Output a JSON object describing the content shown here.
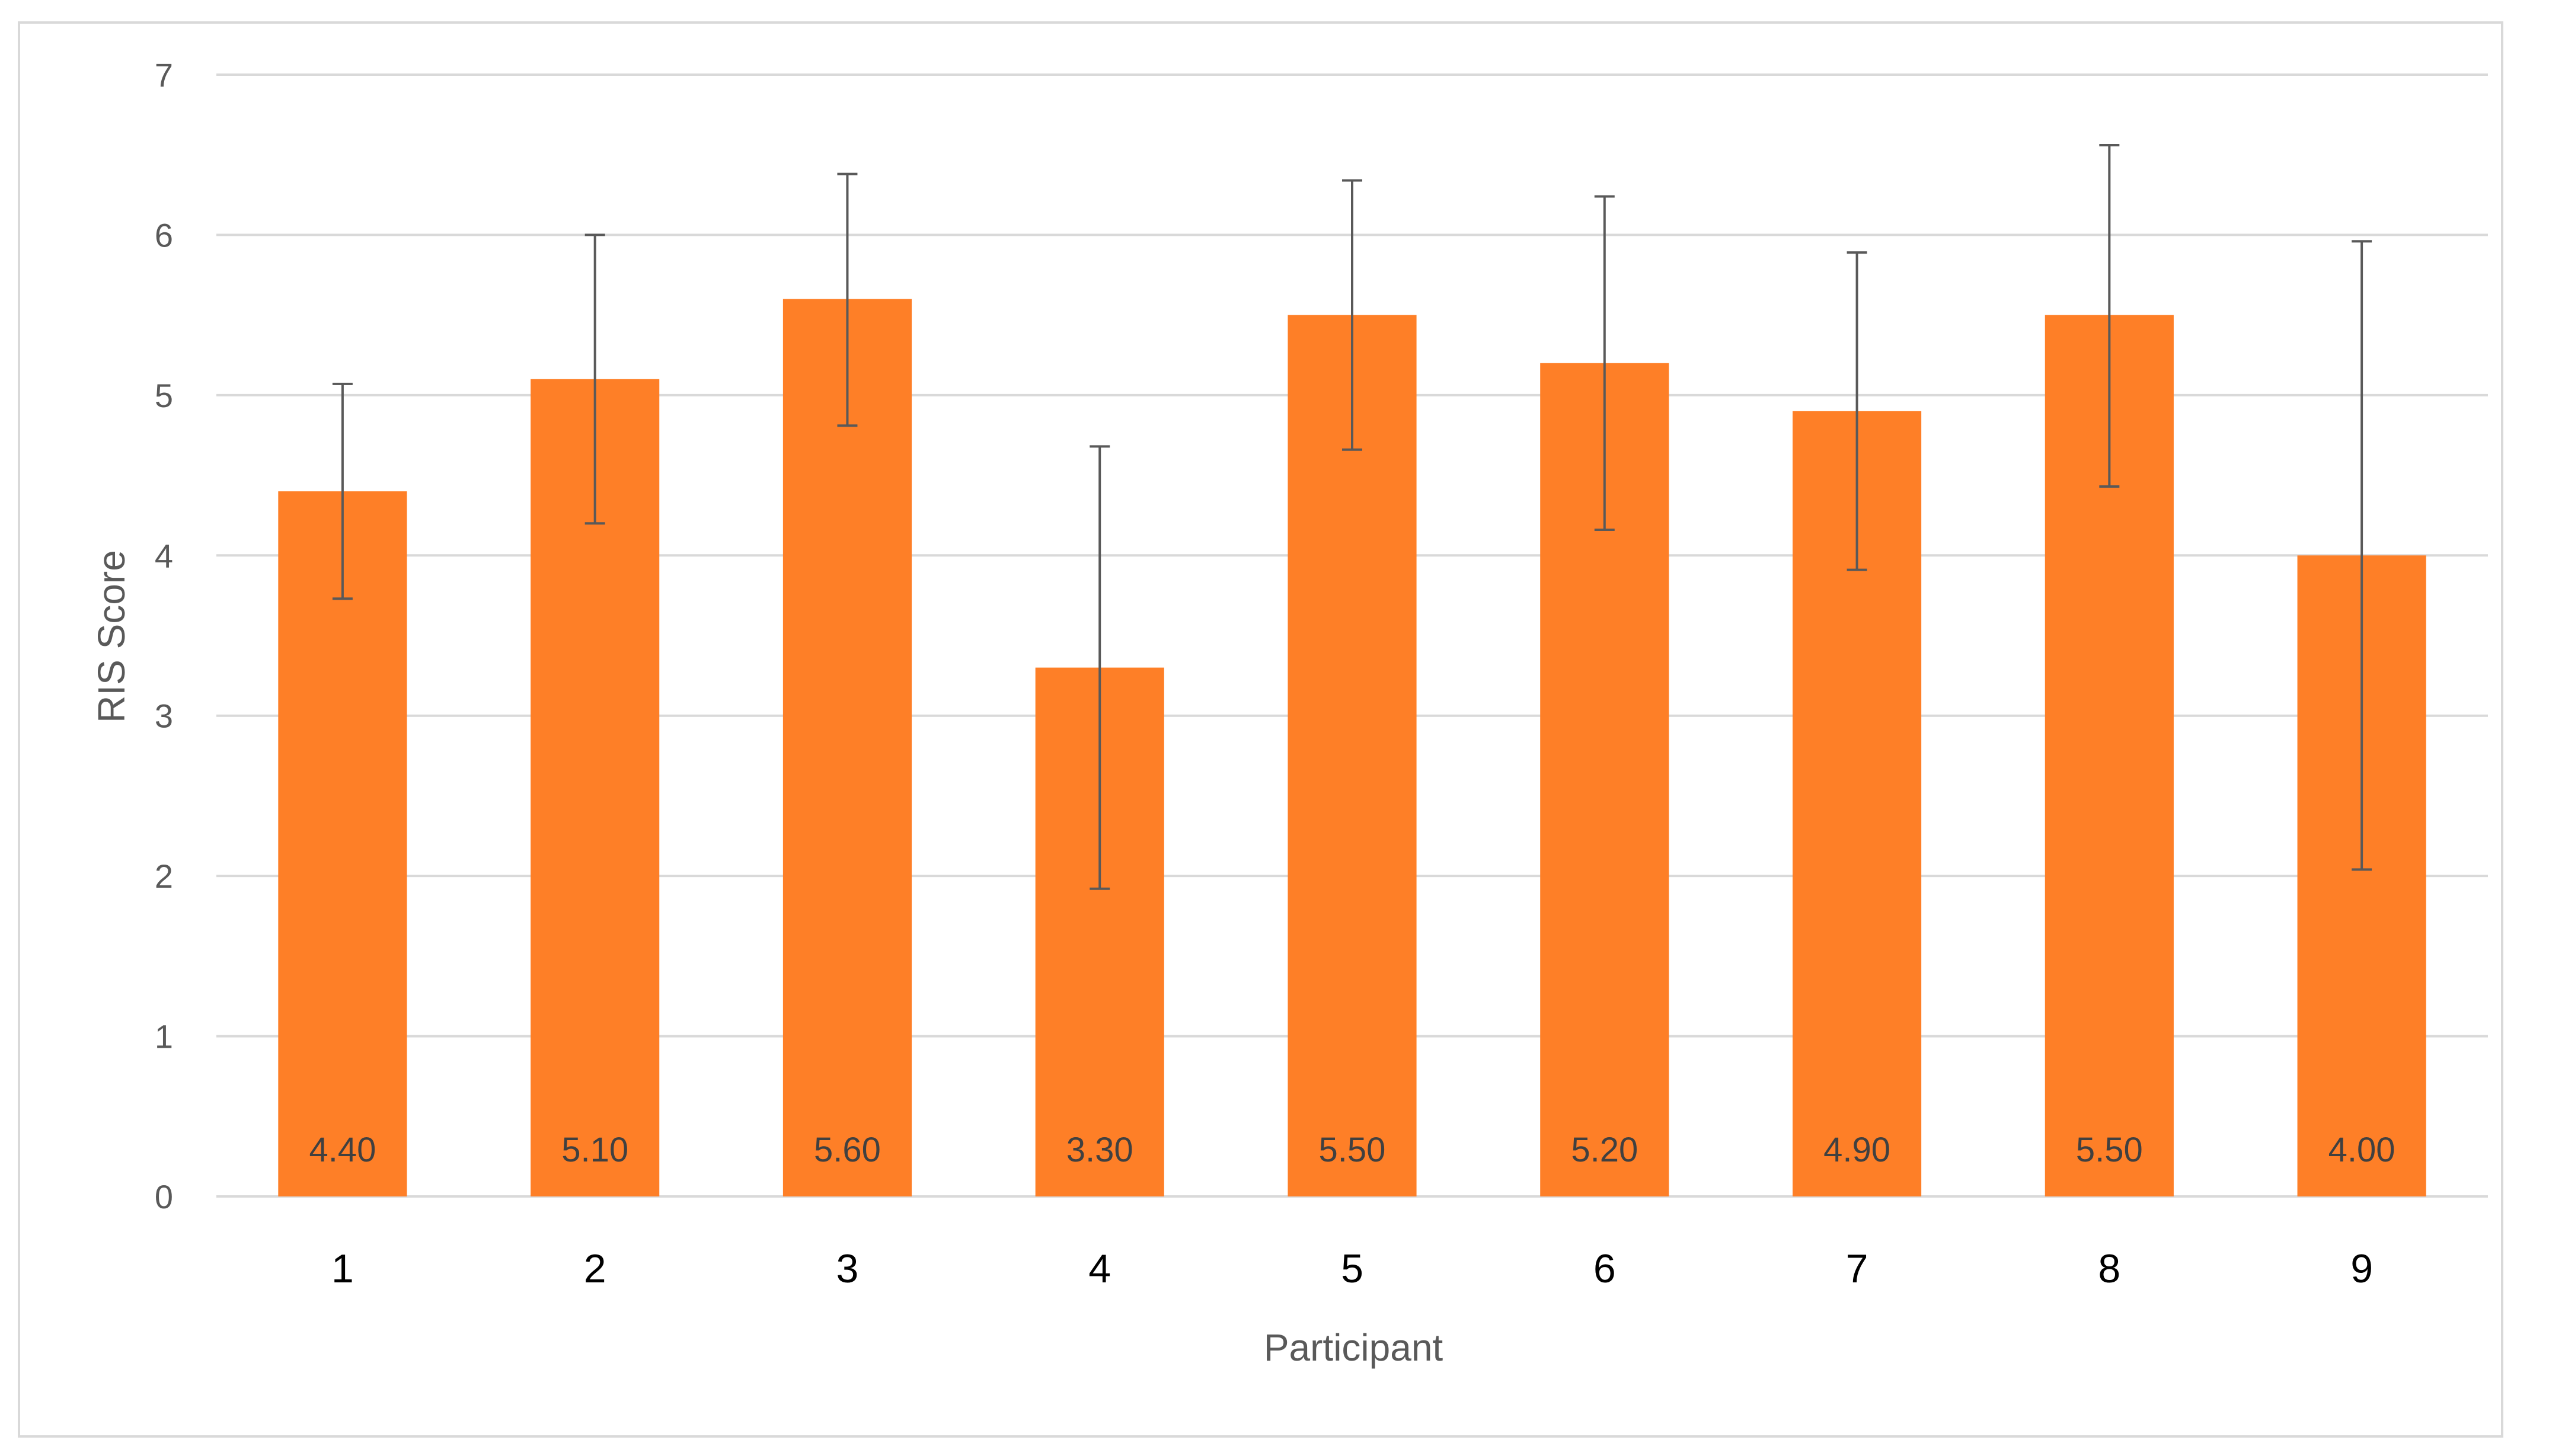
{
  "chart_data": {
    "type": "bar",
    "xlabel": "Participant",
    "ylabel": "RIS Score",
    "categories": [
      "1",
      "2",
      "3",
      "4",
      "5",
      "6",
      "7",
      "8",
      "9"
    ],
    "values": [
      4.4,
      5.1,
      5.6,
      3.3,
      5.5,
      5.2,
      4.9,
      5.5,
      4.0
    ],
    "value_labels": [
      "4.40",
      "5.10",
      "5.60",
      "3.30",
      "5.50",
      "5.20",
      "4.90",
      "5.50",
      "4.00"
    ],
    "error_low": [
      3.73,
      4.2,
      4.81,
      1.92,
      4.66,
      4.16,
      3.91,
      4.43,
      2.04
    ],
    "error_high": [
      5.07,
      6.0,
      6.38,
      4.68,
      6.34,
      6.24,
      5.89,
      6.56,
      5.96
    ],
    "ylim": [
      0,
      7
    ],
    "yticks": [
      "0",
      "1",
      "2",
      "3",
      "4",
      "5",
      "6",
      "7"
    ],
    "grid": true,
    "legend": "none",
    "colors": {
      "bar": "#fe7f27",
      "grid": "#d9d9d9",
      "error_bar": "#595959"
    }
  }
}
